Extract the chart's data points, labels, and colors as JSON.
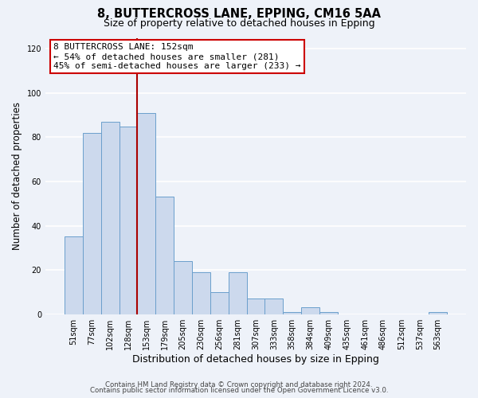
{
  "title": "8, BUTTERCROSS LANE, EPPING, CM16 5AA",
  "subtitle": "Size of property relative to detached houses in Epping",
  "xlabel": "Distribution of detached houses by size in Epping",
  "ylabel": "Number of detached properties",
  "bar_labels": [
    "51sqm",
    "77sqm",
    "102sqm",
    "128sqm",
    "153sqm",
    "179sqm",
    "205sqm",
    "230sqm",
    "256sqm",
    "281sqm",
    "307sqm",
    "333sqm",
    "358sqm",
    "384sqm",
    "409sqm",
    "435sqm",
    "461sqm",
    "486sqm",
    "512sqm",
    "537sqm",
    "563sqm"
  ],
  "bar_values": [
    35,
    82,
    87,
    85,
    91,
    53,
    24,
    19,
    10,
    19,
    7,
    7,
    1,
    3,
    1,
    0,
    0,
    0,
    0,
    0,
    1
  ],
  "bar_color": "#ccd9ed",
  "bar_edge_color": "#6b9fcc",
  "vline_color": "#aa0000",
  "vline_index": 4,
  "annotation_line1": "8 BUTTERCROSS LANE: 152sqm",
  "annotation_line2": "← 54% of detached houses are smaller (281)",
  "annotation_line3": "45% of semi-detached houses are larger (233) →",
  "ylim": [
    0,
    125
  ],
  "yticks": [
    0,
    20,
    40,
    60,
    80,
    100,
    120
  ],
  "background_color": "#eef2f9",
  "grid_color": "#ffffff",
  "footer_line1": "Contains HM Land Registry data © Crown copyright and database right 2024.",
  "footer_line2": "Contains public sector information licensed under the Open Government Licence v3.0."
}
